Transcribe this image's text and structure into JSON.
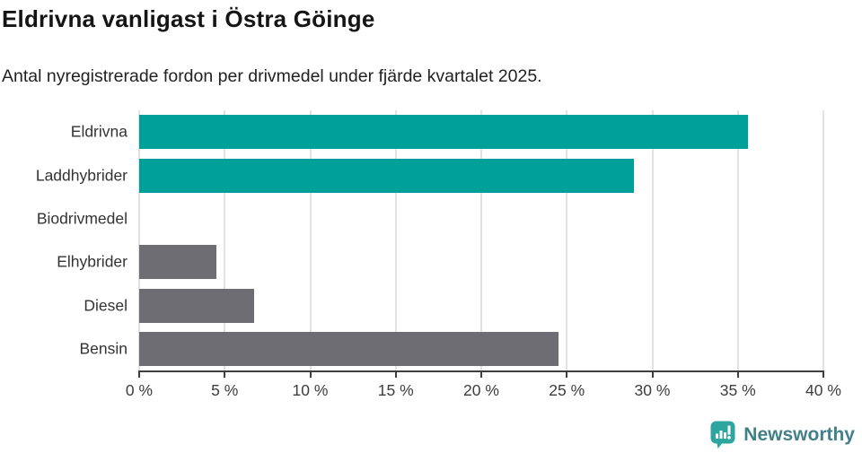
{
  "title": "Eldrivna vanligast i Östra Göinge",
  "subtitle": "Antal nyregistrerade fordon per drivmedel under fjärde kvartalet 2025.",
  "footer": {
    "brand": "Newsworthy"
  },
  "colors": {
    "teal": "#00a09a",
    "gray": "#6d6d73",
    "gridline": "#e2e2e2",
    "axis": "#404040",
    "logo_icon": "#2ea69f",
    "logo_text": "#41808a"
  },
  "chart_data": {
    "type": "bar",
    "orientation": "horizontal",
    "title": "Eldrivna vanligast i Östra Göinge",
    "subtitle": "Antal nyregistrerade fordon per drivmedel under fjärde kvartalet 2025.",
    "categories": [
      "Eldrivna",
      "Laddhybrider",
      "Biodrivmedel",
      "Elhybrider",
      "Diesel",
      "Bensin"
    ],
    "values": [
      35.6,
      28.9,
      0,
      4.5,
      6.7,
      24.5
    ],
    "unit": "%",
    "bar_colors": [
      "#00a09a",
      "#00a09a",
      "#6d6d73",
      "#6d6d73",
      "#6d6d73",
      "#6d6d73"
    ],
    "xlim": [
      0,
      40
    ],
    "x_ticks": [
      0,
      5,
      10,
      15,
      20,
      25,
      30,
      35,
      40
    ],
    "x_tick_labels": [
      "0 %",
      "5 %",
      "10 %",
      "15 %",
      "20 %",
      "25 %",
      "30 %",
      "35 %",
      "40 %"
    ],
    "grid": true,
    "legend": false
  }
}
